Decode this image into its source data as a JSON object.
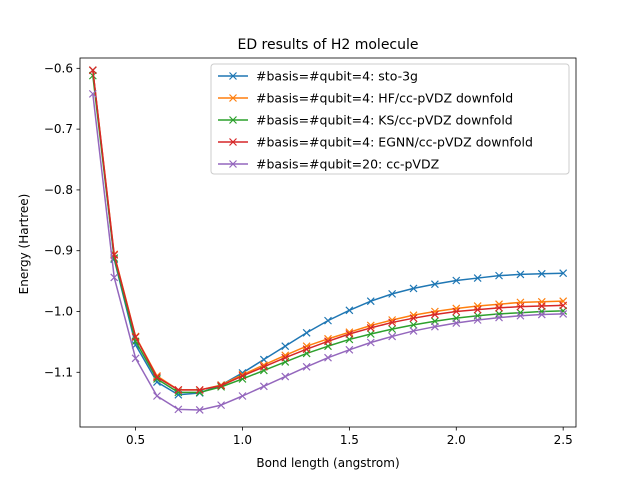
{
  "chart_data": {
    "type": "line",
    "title": "ED results of H2 molecule",
    "xlabel": "Bond length (angstrom)",
    "ylabel": "Energy (Hartree)",
    "xlim": [
      0.24,
      2.56
    ],
    "ylim": [
      -1.19,
      -0.583
    ],
    "xticks": [
      0.5,
      1.0,
      1.5,
      2.0,
      2.5
    ],
    "xtick_labels": [
      "0.5",
      "1.0",
      "1.5",
      "2.0",
      "2.5"
    ],
    "yticks": [
      -1.1,
      -1.0,
      -0.9,
      -0.8,
      -0.7,
      -0.6
    ],
    "ytick_labels": [
      "−1.1",
      "−1.0",
      "−0.9",
      "−0.8",
      "−0.7",
      "−0.6"
    ],
    "legend_position": "upper right",
    "marker": "x",
    "x": [
      0.3,
      0.4,
      0.5,
      0.6,
      0.7,
      0.8,
      0.9,
      1.0,
      1.1,
      1.2,
      1.3,
      1.4,
      1.5,
      1.6,
      1.7,
      1.8,
      1.9,
      2.0,
      2.1,
      2.2,
      2.3,
      2.4,
      2.5
    ],
    "series": [
      {
        "name": "#basis=#qubit=4: sto-3g",
        "color": "#1f77b4",
        "values": [
          -0.603,
          -0.914,
          -1.055,
          -1.116,
          -1.137,
          -1.134,
          -1.121,
          -1.101,
          -1.079,
          -1.057,
          -1.035,
          -1.015,
          -0.998,
          -0.983,
          -0.971,
          -0.962,
          -0.955,
          -0.949,
          -0.945,
          -0.941,
          -0.939,
          -0.938,
          -0.937
        ]
      },
      {
        "name": "#basis=#qubit=4: HF/cc-pVDZ downfold",
        "color": "#ff7f0e",
        "values": [
          -0.603,
          -0.906,
          -1.041,
          -1.106,
          -1.129,
          -1.129,
          -1.121,
          -1.104,
          -1.088,
          -1.072,
          -1.057,
          -1.045,
          -1.034,
          -1.023,
          -1.014,
          -1.006,
          -1.0,
          -0.995,
          -0.991,
          -0.988,
          -0.985,
          -0.984,
          -0.983
        ]
      },
      {
        "name": "#basis=#qubit=4: KS/cc-pVDZ downfold",
        "color": "#2ca02c",
        "values": [
          -0.612,
          -0.912,
          -1.049,
          -1.111,
          -1.133,
          -1.133,
          -1.124,
          -1.111,
          -1.097,
          -1.083,
          -1.069,
          -1.057,
          -1.046,
          -1.037,
          -1.029,
          -1.022,
          -1.016,
          -1.011,
          -1.007,
          -1.004,
          -1.002,
          -1.0,
          -0.999
        ]
      },
      {
        "name": "#basis=#qubit=4: EGNN/cc-pVDZ downfold",
        "color": "#d62728",
        "values": [
          -0.603,
          -0.907,
          -1.042,
          -1.108,
          -1.129,
          -1.129,
          -1.122,
          -1.106,
          -1.091,
          -1.076,
          -1.062,
          -1.049,
          -1.037,
          -1.027,
          -1.018,
          -1.011,
          -1.005,
          -1.0,
          -0.997,
          -0.994,
          -0.992,
          -0.991,
          -0.99
        ]
      },
      {
        "name": "#basis=#qubit=20: cc-pVDZ",
        "color": "#9467bd",
        "values": [
          -0.642,
          -0.944,
          -1.077,
          -1.139,
          -1.161,
          -1.162,
          -1.154,
          -1.139,
          -1.123,
          -1.107,
          -1.091,
          -1.076,
          -1.063,
          -1.051,
          -1.041,
          -1.032,
          -1.025,
          -1.019,
          -1.014,
          -1.01,
          -1.007,
          -1.005,
          -1.004
        ]
      }
    ]
  }
}
